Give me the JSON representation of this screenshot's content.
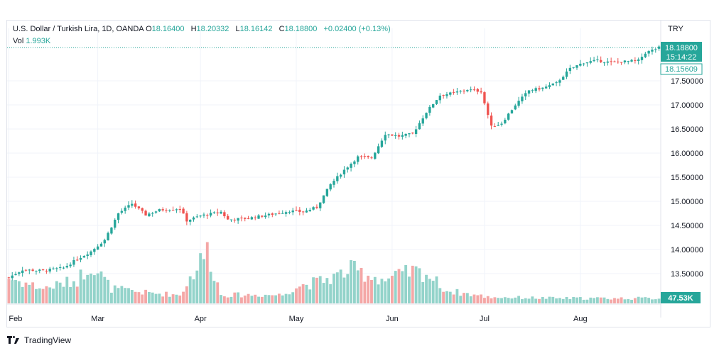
{
  "header": {
    "symbol": "U.S. Dollar / Turkish Lira, 1D, OANDA",
    "open_label": "O",
    "open": "18.16400",
    "high_label": "H",
    "high": "18.20332",
    "low_label": "L",
    "low": "18.16142",
    "close_label": "C",
    "close": "18.18800",
    "change": "+0.02400 (+0.13%)",
    "vol_label": "Vol",
    "vol_value": "1.993K",
    "currency": "TRY"
  },
  "badges": {
    "last_price": "18.18800",
    "countdown": "15:14:22",
    "ref_price": "18.15609",
    "volume": "47.53K"
  },
  "footer": {
    "brand": "TradingView"
  },
  "colors": {
    "up": "#26a69a",
    "down": "#ef5350",
    "vol_up": "#93d3ca",
    "vol_down": "#f4a7a6"
  },
  "chart_data": {
    "type": "candlestick",
    "x_ticks": [
      "Feb",
      "Mar",
      "Apr",
      "May",
      "Jun",
      "Jul",
      "Aug"
    ],
    "y_ticks": [
      "13.50000",
      "14.00000",
      "14.50000",
      "15.00000",
      "15.50000",
      "16.00000",
      "16.50000",
      "17.00000",
      "17.50000"
    ],
    "ylim": [
      13.0,
      18.6
    ],
    "grid": true,
    "keypoints": [
      {
        "i": 0,
        "v": 13.42
      },
      {
        "i": 4,
        "v": 13.58
      },
      {
        "i": 10,
        "v": 13.56
      },
      {
        "i": 16,
        "v": 13.62
      },
      {
        "i": 20,
        "v": 13.8
      },
      {
        "i": 24,
        "v": 13.96
      },
      {
        "i": 28,
        "v": 14.2
      },
      {
        "i": 32,
        "v": 14.75
      },
      {
        "i": 36,
        "v": 14.95
      },
      {
        "i": 40,
        "v": 14.72
      },
      {
        "i": 44,
        "v": 14.82
      },
      {
        "i": 50,
        "v": 14.85
      },
      {
        "i": 52,
        "v": 14.6
      },
      {
        "i": 56,
        "v": 14.7
      },
      {
        "i": 62,
        "v": 14.78
      },
      {
        "i": 64,
        "v": 14.62
      },
      {
        "i": 70,
        "v": 14.65
      },
      {
        "i": 76,
        "v": 14.72
      },
      {
        "i": 82,
        "v": 14.8
      },
      {
        "i": 86,
        "v": 14.78
      },
      {
        "i": 90,
        "v": 14.88
      },
      {
        "i": 94,
        "v": 15.35
      },
      {
        "i": 98,
        "v": 15.65
      },
      {
        "i": 102,
        "v": 15.92
      },
      {
        "i": 106,
        "v": 15.9
      },
      {
        "i": 110,
        "v": 16.4
      },
      {
        "i": 114,
        "v": 16.35
      },
      {
        "i": 118,
        "v": 16.4
      },
      {
        "i": 122,
        "v": 16.85
      },
      {
        "i": 126,
        "v": 17.2
      },
      {
        "i": 130,
        "v": 17.25
      },
      {
        "i": 134,
        "v": 17.32
      },
      {
        "i": 138,
        "v": 17.28
      },
      {
        "i": 141,
        "v": 16.55
      },
      {
        "i": 144,
        "v": 16.62
      },
      {
        "i": 148,
        "v": 17.0
      },
      {
        "i": 152,
        "v": 17.3
      },
      {
        "i": 156,
        "v": 17.35
      },
      {
        "i": 160,
        "v": 17.45
      },
      {
        "i": 164,
        "v": 17.75
      },
      {
        "i": 168,
        "v": 17.88
      },
      {
        "i": 172,
        "v": 17.92
      },
      {
        "i": 176,
        "v": 17.88
      },
      {
        "i": 180,
        "v": 17.9
      },
      {
        "i": 184,
        "v": 17.92
      },
      {
        "i": 186,
        "v": 18.08
      },
      {
        "i": 190,
        "v": 18.19
      }
    ],
    "volume_profile": [
      {
        "i": 0,
        "v": 0.6
      },
      {
        "i": 10,
        "v": 0.35
      },
      {
        "i": 20,
        "v": 0.55
      },
      {
        "i": 24,
        "v": 0.95
      },
      {
        "i": 30,
        "v": 0.35
      },
      {
        "i": 40,
        "v": 0.25
      },
      {
        "i": 50,
        "v": 0.2
      },
      {
        "i": 58,
        "v": 1.25
      },
      {
        "i": 62,
        "v": 0.2
      },
      {
        "i": 80,
        "v": 0.2
      },
      {
        "i": 84,
        "v": 0.4
      },
      {
        "i": 90,
        "v": 0.5
      },
      {
        "i": 96,
        "v": 0.65
      },
      {
        "i": 100,
        "v": 0.8
      },
      {
        "i": 104,
        "v": 0.7
      },
      {
        "i": 110,
        "v": 0.55
      },
      {
        "i": 118,
        "v": 0.75
      },
      {
        "i": 122,
        "v": 0.7
      },
      {
        "i": 128,
        "v": 0.3
      },
      {
        "i": 140,
        "v": 0.15
      },
      {
        "i": 160,
        "v": 0.12
      },
      {
        "i": 190,
        "v": 0.12
      }
    ]
  }
}
